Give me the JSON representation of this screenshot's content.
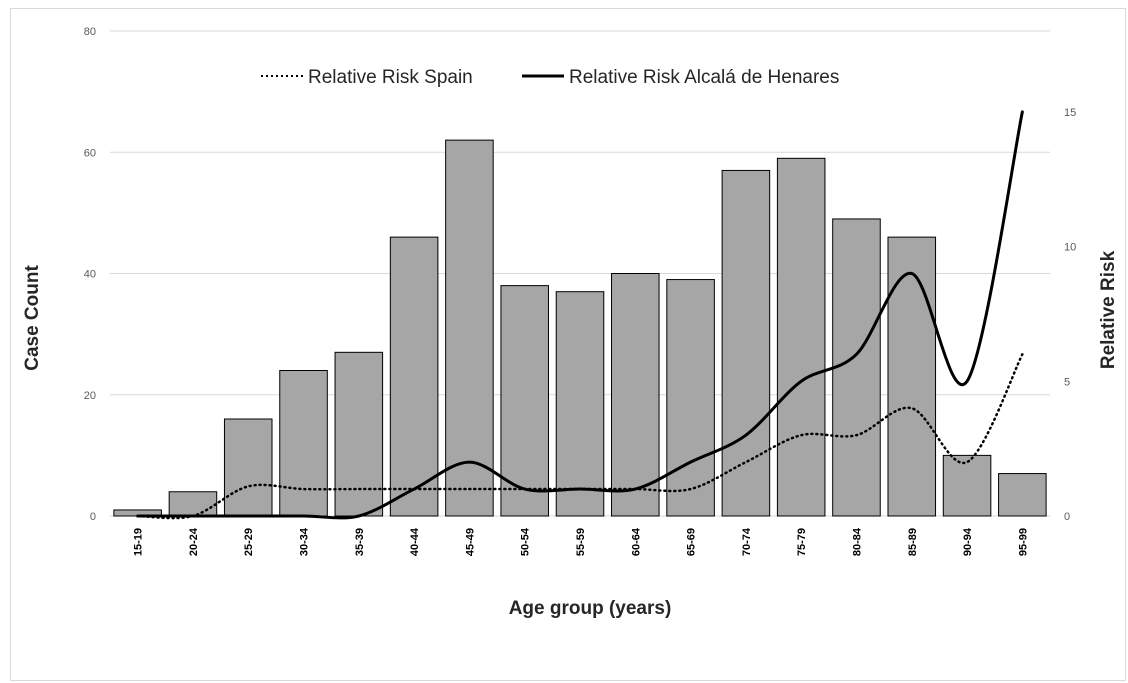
{
  "chart_data": {
    "type": "bar",
    "title": "",
    "xlabel": "Age group (years)",
    "ylabel": "Case Count",
    "y2label": "Relative Risk",
    "ylim": [
      0,
      80
    ],
    "y2lim": [
      0,
      18
    ],
    "yticks": [
      0,
      20,
      40,
      60,
      80
    ],
    "y2ticks": [
      0,
      5,
      10,
      15
    ],
    "grid": true,
    "legend_position": "top",
    "categories": [
      "15-19",
      "20-24",
      "25-29",
      "30-34",
      "35-39",
      "40-44",
      "45-49",
      "50-54",
      "55-59",
      "60-64",
      "65-69",
      "70-74",
      "75-79",
      "80-84",
      "85-89",
      "90-94",
      "95-99"
    ],
    "bars": {
      "name": "Case Count",
      "color": "#a6a6a6",
      "values": [
        1,
        4,
        16,
        24,
        27,
        46,
        62,
        38,
        37,
        40,
        39,
        57,
        59,
        49,
        46,
        10,
        7
      ]
    },
    "series": [
      {
        "name": "Relative Risk Spain",
        "style": "dotted",
        "color": "#000000",
        "axis": "right",
        "values": [
          0,
          0,
          1.1,
          1.0,
          1.0,
          1.0,
          1.0,
          1.0,
          1.0,
          1.0,
          1.0,
          2.0,
          3.0,
          3.0,
          4.0,
          2.0,
          6.0
        ]
      },
      {
        "name": "Relative Risk Alcalá de Henares",
        "style": "solid",
        "color": "#000000",
        "axis": "right",
        "values": [
          0,
          0,
          0,
          0,
          0,
          1.0,
          2.0,
          1.0,
          1.0,
          1.0,
          2.0,
          3.0,
          5.0,
          6.0,
          9.0,
          5.0,
          15.0
        ]
      }
    ]
  }
}
